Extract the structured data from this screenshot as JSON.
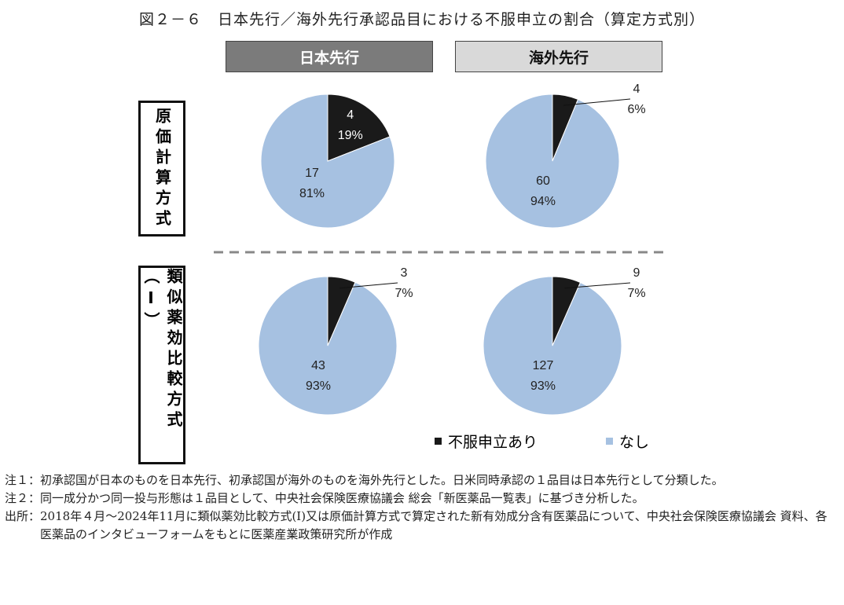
{
  "title": "図２－６　日本先行／海外先行承認品目における不服申立の割合（算定方式別）",
  "columns": [
    "日本先行",
    "海外先行"
  ],
  "rows": [
    "原価計算方式",
    "類似薬効比較方式（Ⅰ）"
  ],
  "colors": {
    "yes": "#1a1a1a",
    "no": "#a6c1e1",
    "col1_header": "#7b7b7b",
    "col2_header": "#d9d9d9"
  },
  "chart_data": {
    "type": "pie",
    "legend": {
      "position": "bottom-right",
      "entries": [
        "不服申立あり",
        "なし"
      ]
    },
    "charts": [
      {
        "row": "原価計算方式",
        "column": "日本先行",
        "slices": [
          {
            "series": "不服申立あり",
            "count": 4,
            "percent": "19%"
          },
          {
            "series": "なし",
            "count": 17,
            "percent": "81%"
          }
        ]
      },
      {
        "row": "原価計算方式",
        "column": "海外先行",
        "slices": [
          {
            "series": "不服申立あり",
            "count": 4,
            "percent": "6%"
          },
          {
            "series": "なし",
            "count": 60,
            "percent": "94%"
          }
        ]
      },
      {
        "row": "類似薬効比較方式（Ⅰ）",
        "column": "日本先行",
        "slices": [
          {
            "series": "不服申立あり",
            "count": 3,
            "percent": "7%"
          },
          {
            "series": "なし",
            "count": 43,
            "percent": "93%"
          }
        ]
      },
      {
        "row": "類似薬効比較方式（Ⅰ）",
        "column": "海外先行",
        "slices": [
          {
            "series": "不服申立あり",
            "count": 9,
            "percent": "7%"
          },
          {
            "series": "なし",
            "count": 127,
            "percent": "93%"
          }
        ]
      }
    ]
  },
  "notes": [
    {
      "key": "注１：",
      "text": "初承認国が日本のものを日本先行、初承認国が海外のものを海外先行とした。日米同時承認の１品目は日本先行として分類した。"
    },
    {
      "key": "注２：",
      "text": "同一成分かつ同一投与形態は１品目として、中央社会保険医療協議会 総会「新医薬品一覧表」に基づき分析した。"
    },
    {
      "key": "出所：",
      "text": "2018年４月～2024年11月に類似薬効比較方式(Ⅰ)又は原価計算方式で算定された新有効成分含有医薬品について、中央社会保険医療協議会 資料、各医薬品のインタビューフォームをもとに医薬産業政策研究所が作成"
    }
  ]
}
